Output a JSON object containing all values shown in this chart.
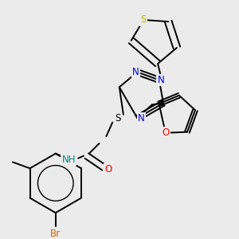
{
  "background_color": "#ebebeb",
  "bond_color": "#000000",
  "figsize": [
    3.0,
    3.0
  ],
  "dpi": 100,
  "colors": {
    "S": "#b8b800",
    "N": "#0000ee",
    "O": "#ee0000",
    "Br": "#cc6600",
    "NH": "#008888",
    "black": "#000000"
  }
}
